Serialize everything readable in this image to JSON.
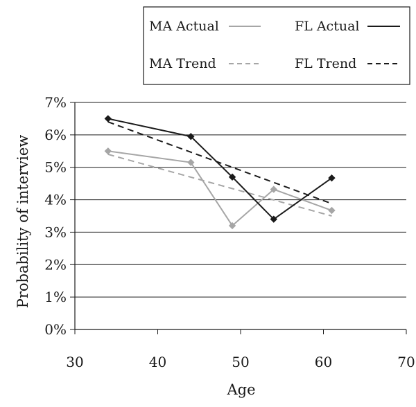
{
  "chart_data": {
    "type": "line",
    "title": "",
    "xlabel": "Age",
    "ylabel": "Probability of interview",
    "xlim": [
      30,
      70
    ],
    "ylim": [
      0,
      7
    ],
    "x_ticks": [
      "30",
      "40",
      "50",
      "60",
      "70"
    ],
    "y_ticks": [
      "0%",
      "1%",
      "2%",
      "3%",
      "4%",
      "5%",
      "6%",
      "7%"
    ],
    "grid": "horizontal",
    "legend_position": "top-right",
    "series": [
      {
        "name": "MA Actual",
        "color": "#a6a6a6",
        "style": "solid",
        "marker": "diamond",
        "x": [
          34,
          44,
          49,
          54,
          61
        ],
        "y": [
          5.5,
          5.15,
          3.2,
          4.32,
          3.67
        ]
      },
      {
        "name": "FL Actual",
        "color": "#1a1a1a",
        "style": "solid",
        "marker": "diamond",
        "x": [
          34,
          44,
          49,
          54,
          61
        ],
        "y": [
          6.5,
          5.95,
          4.7,
          3.4,
          4.67
        ]
      },
      {
        "name": "MA Trend",
        "color": "#a6a6a6",
        "style": "dashed",
        "marker": "none",
        "x": [
          34,
          61
        ],
        "y": [
          5.4,
          3.5
        ]
      },
      {
        "name": "FL Trend",
        "color": "#1a1a1a",
        "style": "dashed",
        "marker": "none",
        "x": [
          34,
          61
        ],
        "y": [
          6.4,
          3.88
        ]
      }
    ]
  }
}
